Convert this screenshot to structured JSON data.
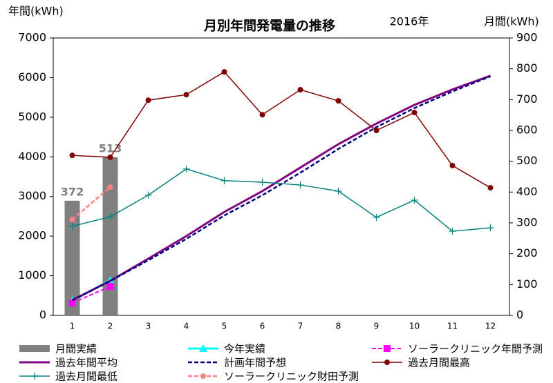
{
  "chart_data": {
    "type": "combo",
    "title": "月別年間発電量の推移",
    "subtitle": "2016年",
    "ylabel": "年間(kWh)",
    "y2label": "月間(kWh)",
    "categories": [
      "1",
      "2",
      "3",
      "4",
      "5",
      "6",
      "7",
      "8",
      "9",
      "10",
      "11",
      "12"
    ],
    "ylim": [
      0,
      7000
    ],
    "yticks": [
      0,
      1000,
      2000,
      3000,
      4000,
      5000,
      6000,
      7000
    ],
    "y2lim": [
      0,
      900
    ],
    "y2ticks": [
      0,
      100,
      200,
      300,
      400,
      500,
      600,
      700,
      800,
      900
    ],
    "series": [
      {
        "name": "月間実績",
        "type": "bar",
        "axis": "y2",
        "color": "#808080",
        "data_labels": true,
        "values": [
          372,
          513,
          null,
          null,
          null,
          null,
          null,
          null,
          null,
          null,
          null,
          null
        ]
      },
      {
        "name": "今年実績",
        "type": "line",
        "axis": "y",
        "color": "#00ffff",
        "marker": "triangle",
        "dash": false,
        "width": 3,
        "values": [
          372,
          885,
          null,
          null,
          null,
          null,
          null,
          null,
          null,
          null,
          null,
          null
        ]
      },
      {
        "name": "ソーラークリニック年間予測",
        "type": "line",
        "axis": "y",
        "color": "#ff00ff",
        "marker": "square",
        "dash": true,
        "width": 2,
        "values": [
          313,
          730,
          null,
          null,
          null,
          null,
          null,
          null,
          null,
          null,
          null,
          null
        ]
      },
      {
        "name": "過去年間平均",
        "type": "line",
        "axis": "y",
        "color": "#800080",
        "marker": "none",
        "dash": false,
        "width": 3,
        "values": [
          383,
          870,
          1430,
          2000,
          2610,
          3135,
          3730,
          4320,
          4840,
          5310,
          5700,
          6045
        ]
      },
      {
        "name": "計画年間予想",
        "type": "line",
        "axis": "y",
        "color": "#000080",
        "marker": "none",
        "dash": true,
        "width": 2.5,
        "values": [
          380,
          870,
          1390,
          1930,
          2520,
          3030,
          3600,
          4200,
          4750,
          5230,
          5650,
          6030
        ]
      },
      {
        "name": "過去月間最高",
        "type": "line",
        "axis": "y2",
        "color": "#800000",
        "marker": "circle",
        "dash": false,
        "width": 1.5,
        "values": [
          519,
          513,
          698,
          716,
          790,
          651,
          732,
          696,
          600,
          658,
          486,
          414
        ]
      },
      {
        "name": "過去月間最低",
        "type": "line",
        "axis": "y2",
        "color": "#008080",
        "marker": "plus",
        "dash": false,
        "width": 1.5,
        "values": [
          289,
          320,
          390,
          475,
          437,
          432,
          423,
          403,
          318,
          374,
          273,
          284
        ]
      },
      {
        "name": "ソーラークリニック財田予測",
        "type": "line",
        "axis": "y2",
        "color": "#ff8080",
        "marker": "circle",
        "dash": true,
        "width": 2.5,
        "values": [
          311,
          416,
          null,
          null,
          null,
          null,
          null,
          null,
          null,
          null,
          null,
          null
        ]
      }
    ]
  }
}
